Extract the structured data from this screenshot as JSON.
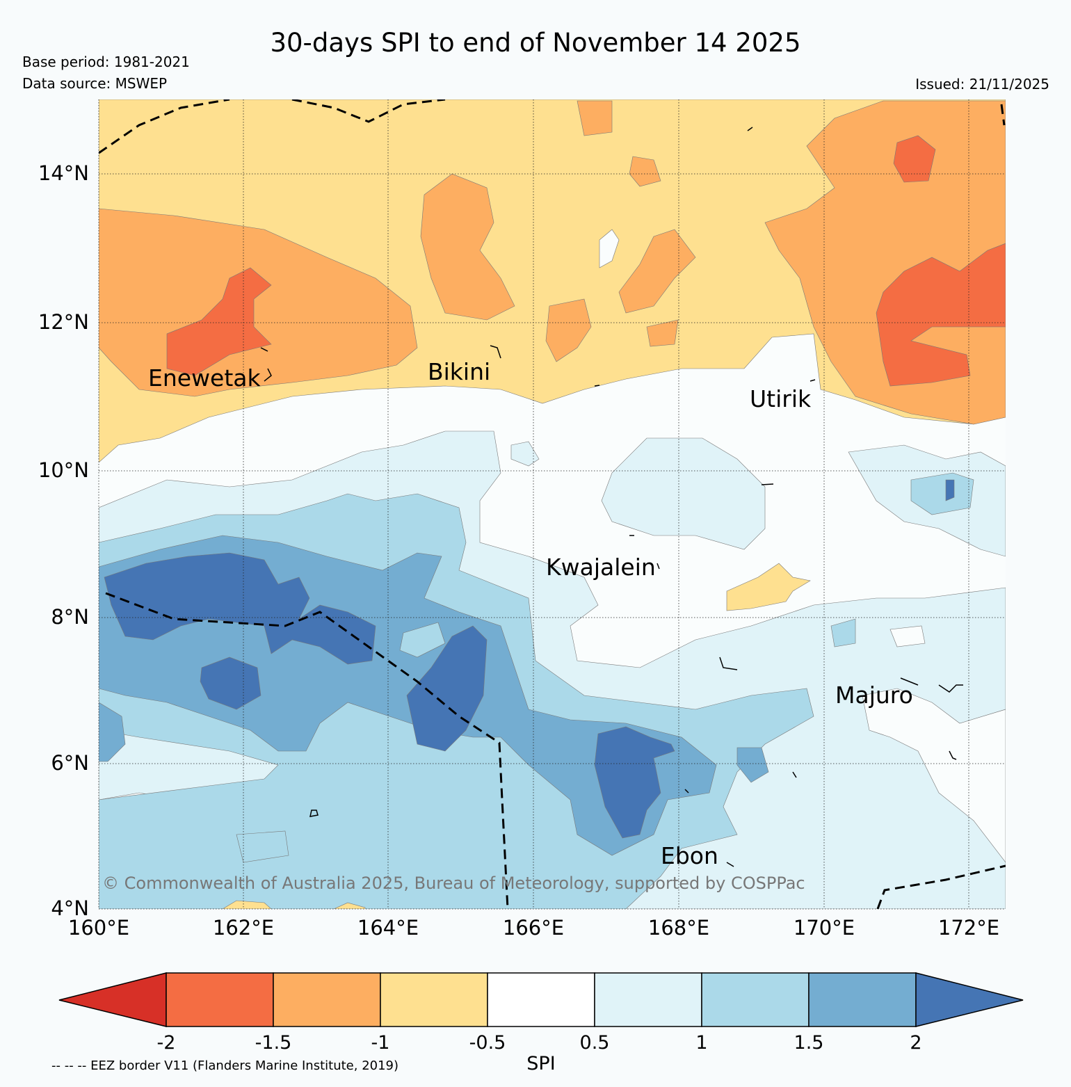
{
  "header": {
    "title": "30-days SPI to end of November 14 2025",
    "base_period": "Base period: 1981-2021",
    "data_source": "Data source: MSWEP",
    "issued": "Issued: 21/11/2025"
  },
  "map": {
    "lat_labels": [
      "14°N",
      "12°N",
      "10°N",
      "8°N",
      "6°N",
      "4°N"
    ],
    "lon_labels": [
      "160°E",
      "162°E",
      "164°E",
      "166°E",
      "168°E",
      "170°E",
      "172°E"
    ],
    "places": [
      "Enewetak",
      "Bikini",
      "Utirik",
      "Kwajalein",
      "Majuro",
      "Ebon"
    ],
    "copyright": "© Commonwealth of Australia 2025, Bureau of Meteorology, supported by COSPPac"
  },
  "legend": {
    "label": "SPI",
    "ticks": [
      "-2",
      "-1.5",
      "-1",
      "-0.5",
      "0.5",
      "1",
      "1.5",
      "2"
    ],
    "colors": [
      "#d73027",
      "#f46d43",
      "#fdae61",
      "#fee090",
      "#ffffff",
      "#e0f3f8",
      "#abd9e9",
      "#74add1",
      "#4575b4"
    ],
    "eez_note": "-- -- -- EEZ border V11 (Flanders Marine Institute, 2019)"
  }
}
